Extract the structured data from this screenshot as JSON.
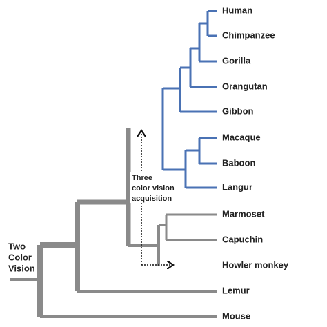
{
  "leaves": [
    "Human",
    "Chimpanzee",
    "Gorilla",
    "Orangutan",
    "Gibbon",
    "Macaque",
    "Baboon",
    "Langur",
    "Marmoset",
    "Capuchin",
    "Howler monkey",
    "Lemur",
    "Mouse"
  ],
  "root_label": [
    "Two",
    "Color",
    "Vision"
  ],
  "event_label": [
    "Three",
    "color vision",
    "acquisition"
  ]
}
